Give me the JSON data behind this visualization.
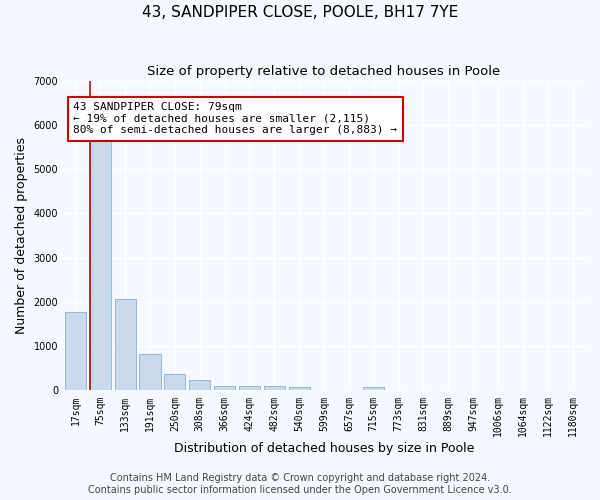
{
  "title": "43, SANDPIPER CLOSE, POOLE, BH17 7YE",
  "subtitle": "Size of property relative to detached houses in Poole",
  "xlabel": "Distribution of detached houses by size in Poole",
  "ylabel": "Number of detached properties",
  "categories": [
    "17sqm",
    "75sqm",
    "133sqm",
    "191sqm",
    "250sqm",
    "308sqm",
    "366sqm",
    "424sqm",
    "482sqm",
    "540sqm",
    "599sqm",
    "657sqm",
    "715sqm",
    "773sqm",
    "831sqm",
    "889sqm",
    "947sqm",
    "1006sqm",
    "1064sqm",
    "1122sqm",
    "1180sqm"
  ],
  "values": [
    1780,
    5750,
    2060,
    820,
    370,
    230,
    110,
    100,
    90,
    70,
    0,
    0,
    70,
    0,
    0,
    0,
    0,
    0,
    0,
    0,
    0
  ],
  "bar_color": "#c9d9ee",
  "bar_edge_color": "#8ab0d4",
  "highlight_color": "#cc0000",
  "highlight_index": 1,
  "annotation_line1": "43 SANDPIPER CLOSE: 79sqm",
  "annotation_line2": "← 19% of detached houses are smaller (2,115)",
  "annotation_line3": "80% of semi-detached houses are larger (8,883) →",
  "ylim": [
    0,
    7000
  ],
  "yticks": [
    0,
    1000,
    2000,
    3000,
    4000,
    5000,
    6000,
    7000
  ],
  "footer1": "Contains HM Land Registry data © Crown copyright and database right 2024.",
  "footer2": "Contains public sector information licensed under the Open Government Licence v3.0.",
  "bg_color": "#f5f8ff",
  "grid_color": "#ffffff",
  "title_fontsize": 11,
  "subtitle_fontsize": 9.5,
  "axis_label_fontsize": 9,
  "tick_fontsize": 7,
  "footer_fontsize": 7,
  "annot_fontsize": 8
}
